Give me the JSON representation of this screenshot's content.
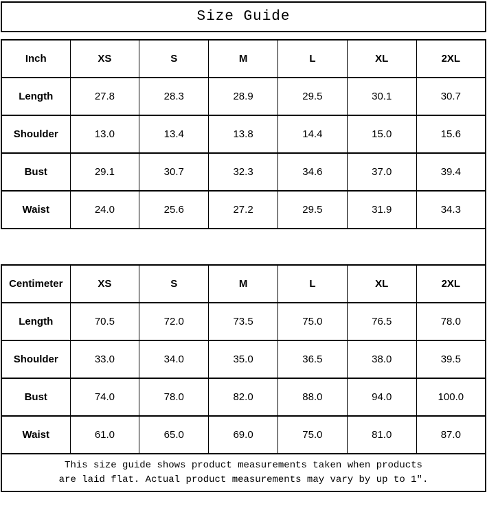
{
  "page": {
    "title": "Size Guide",
    "footer_note": {
      "line1": "This size guide shows product measurements taken when products",
      "line2": "are laid flat. Actual product measurements may vary by up to 1″."
    },
    "colors": {
      "background": "#ffffff",
      "border": "#000000",
      "text": "#000000"
    }
  },
  "chart_data": [
    {
      "type": "table",
      "title": "Size Guide",
      "unit": "Inch",
      "columns": [
        "Inch",
        "XS",
        "S",
        "M",
        "L",
        "XL",
        "2XL"
      ],
      "rows": [
        {
          "label": "Length",
          "values": [
            "27.8",
            "28.3",
            "28.9",
            "29.5",
            "30.1",
            "30.7"
          ]
        },
        {
          "label": "Shoulder",
          "values": [
            "13.0",
            "13.4",
            "13.8",
            "14.4",
            "15.0",
            "15.6"
          ]
        },
        {
          "label": "Bust",
          "values": [
            "29.1",
            "30.7",
            "32.3",
            "34.6",
            "37.0",
            "39.4"
          ]
        },
        {
          "label": "Waist",
          "values": [
            "24.0",
            "25.6",
            "27.2",
            "29.5",
            "31.9",
            "34.3"
          ]
        }
      ]
    },
    {
      "type": "table",
      "title": "Size Guide",
      "unit": "Centimeter",
      "columns": [
        "Centimeter",
        "XS",
        "S",
        "M",
        "L",
        "XL",
        "2XL"
      ],
      "rows": [
        {
          "label": "Length",
          "values": [
            "70.5",
            "72.0",
            "73.5",
            "75.0",
            "76.5",
            "78.0"
          ]
        },
        {
          "label": "Shoulder",
          "values": [
            "33.0",
            "34.0",
            "35.0",
            "36.5",
            "38.0",
            "39.5"
          ]
        },
        {
          "label": "Bust",
          "values": [
            "74.0",
            "78.0",
            "82.0",
            "88.0",
            "94.0",
            "100.0"
          ]
        },
        {
          "label": "Waist",
          "values": [
            "61.0",
            "65.0",
            "69.0",
            "75.0",
            "81.0",
            "87.0"
          ]
        }
      ]
    }
  ]
}
